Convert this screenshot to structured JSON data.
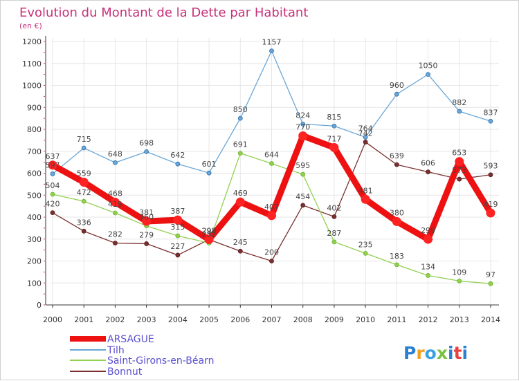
{
  "header": {
    "title": "Evolution du Montant de la Dette par Habitant",
    "subtitle": "(en €)"
  },
  "legend": {
    "items": [
      "ARSAGUE",
      "Tilh",
      "Saint-Girons-en-Béarn",
      "Bonnut"
    ]
  },
  "logo": {
    "text": "Proxiti"
  },
  "colors": {
    "ARSAGUE": "#ee1111",
    "Tilh": "#6aa6d6",
    "Saint-Girons-en-Béarn": "#92d050",
    "Bonnut": "#7a3030",
    "title": "#c8317a",
    "legend_text": "#5a4fd0"
  },
  "chart_data": {
    "type": "line",
    "title": "Evolution du Montant de la Dette par Habitant",
    "subtitle": "(en €)",
    "xlabel": "",
    "ylabel": "",
    "categories": [
      "2000",
      "2001",
      "2002",
      "2003",
      "2004",
      "2005",
      "2006",
      "2007",
      "2008",
      "2009",
      "2010",
      "2011",
      "2012",
      "2013",
      "2014"
    ],
    "ylim": [
      0,
      1200
    ],
    "yticks": [
      0,
      100,
      200,
      300,
      400,
      500,
      600,
      700,
      800,
      900,
      1000,
      1100,
      1200
    ],
    "grid": true,
    "legend_position": "bottom-left",
    "series": [
      {
        "name": "ARSAGUE",
        "values": [
          637,
          559,
          468,
          381,
          387,
          298,
          469,
          407,
          770,
          717,
          481,
          380,
          299,
          653,
          419
        ]
      },
      {
        "name": "Tilh",
        "values": [
          597,
          715,
          648,
          698,
          642,
          601,
          850,
          1157,
          824,
          815,
          764,
          960,
          1050,
          882,
          837
        ]
      },
      {
        "name": "Saint-Girons-en-Béarn",
        "values": [
          504,
          472,
          419,
          360,
          315,
          282,
          691,
          644,
          595,
          287,
          235,
          183,
          134,
          109,
          97
        ]
      },
      {
        "name": "Bonnut",
        "values": [
          420,
          336,
          282,
          279,
          227,
          298,
          245,
          200,
          454,
          402,
          742,
          639,
          606,
          573,
          593
        ]
      }
    ]
  }
}
